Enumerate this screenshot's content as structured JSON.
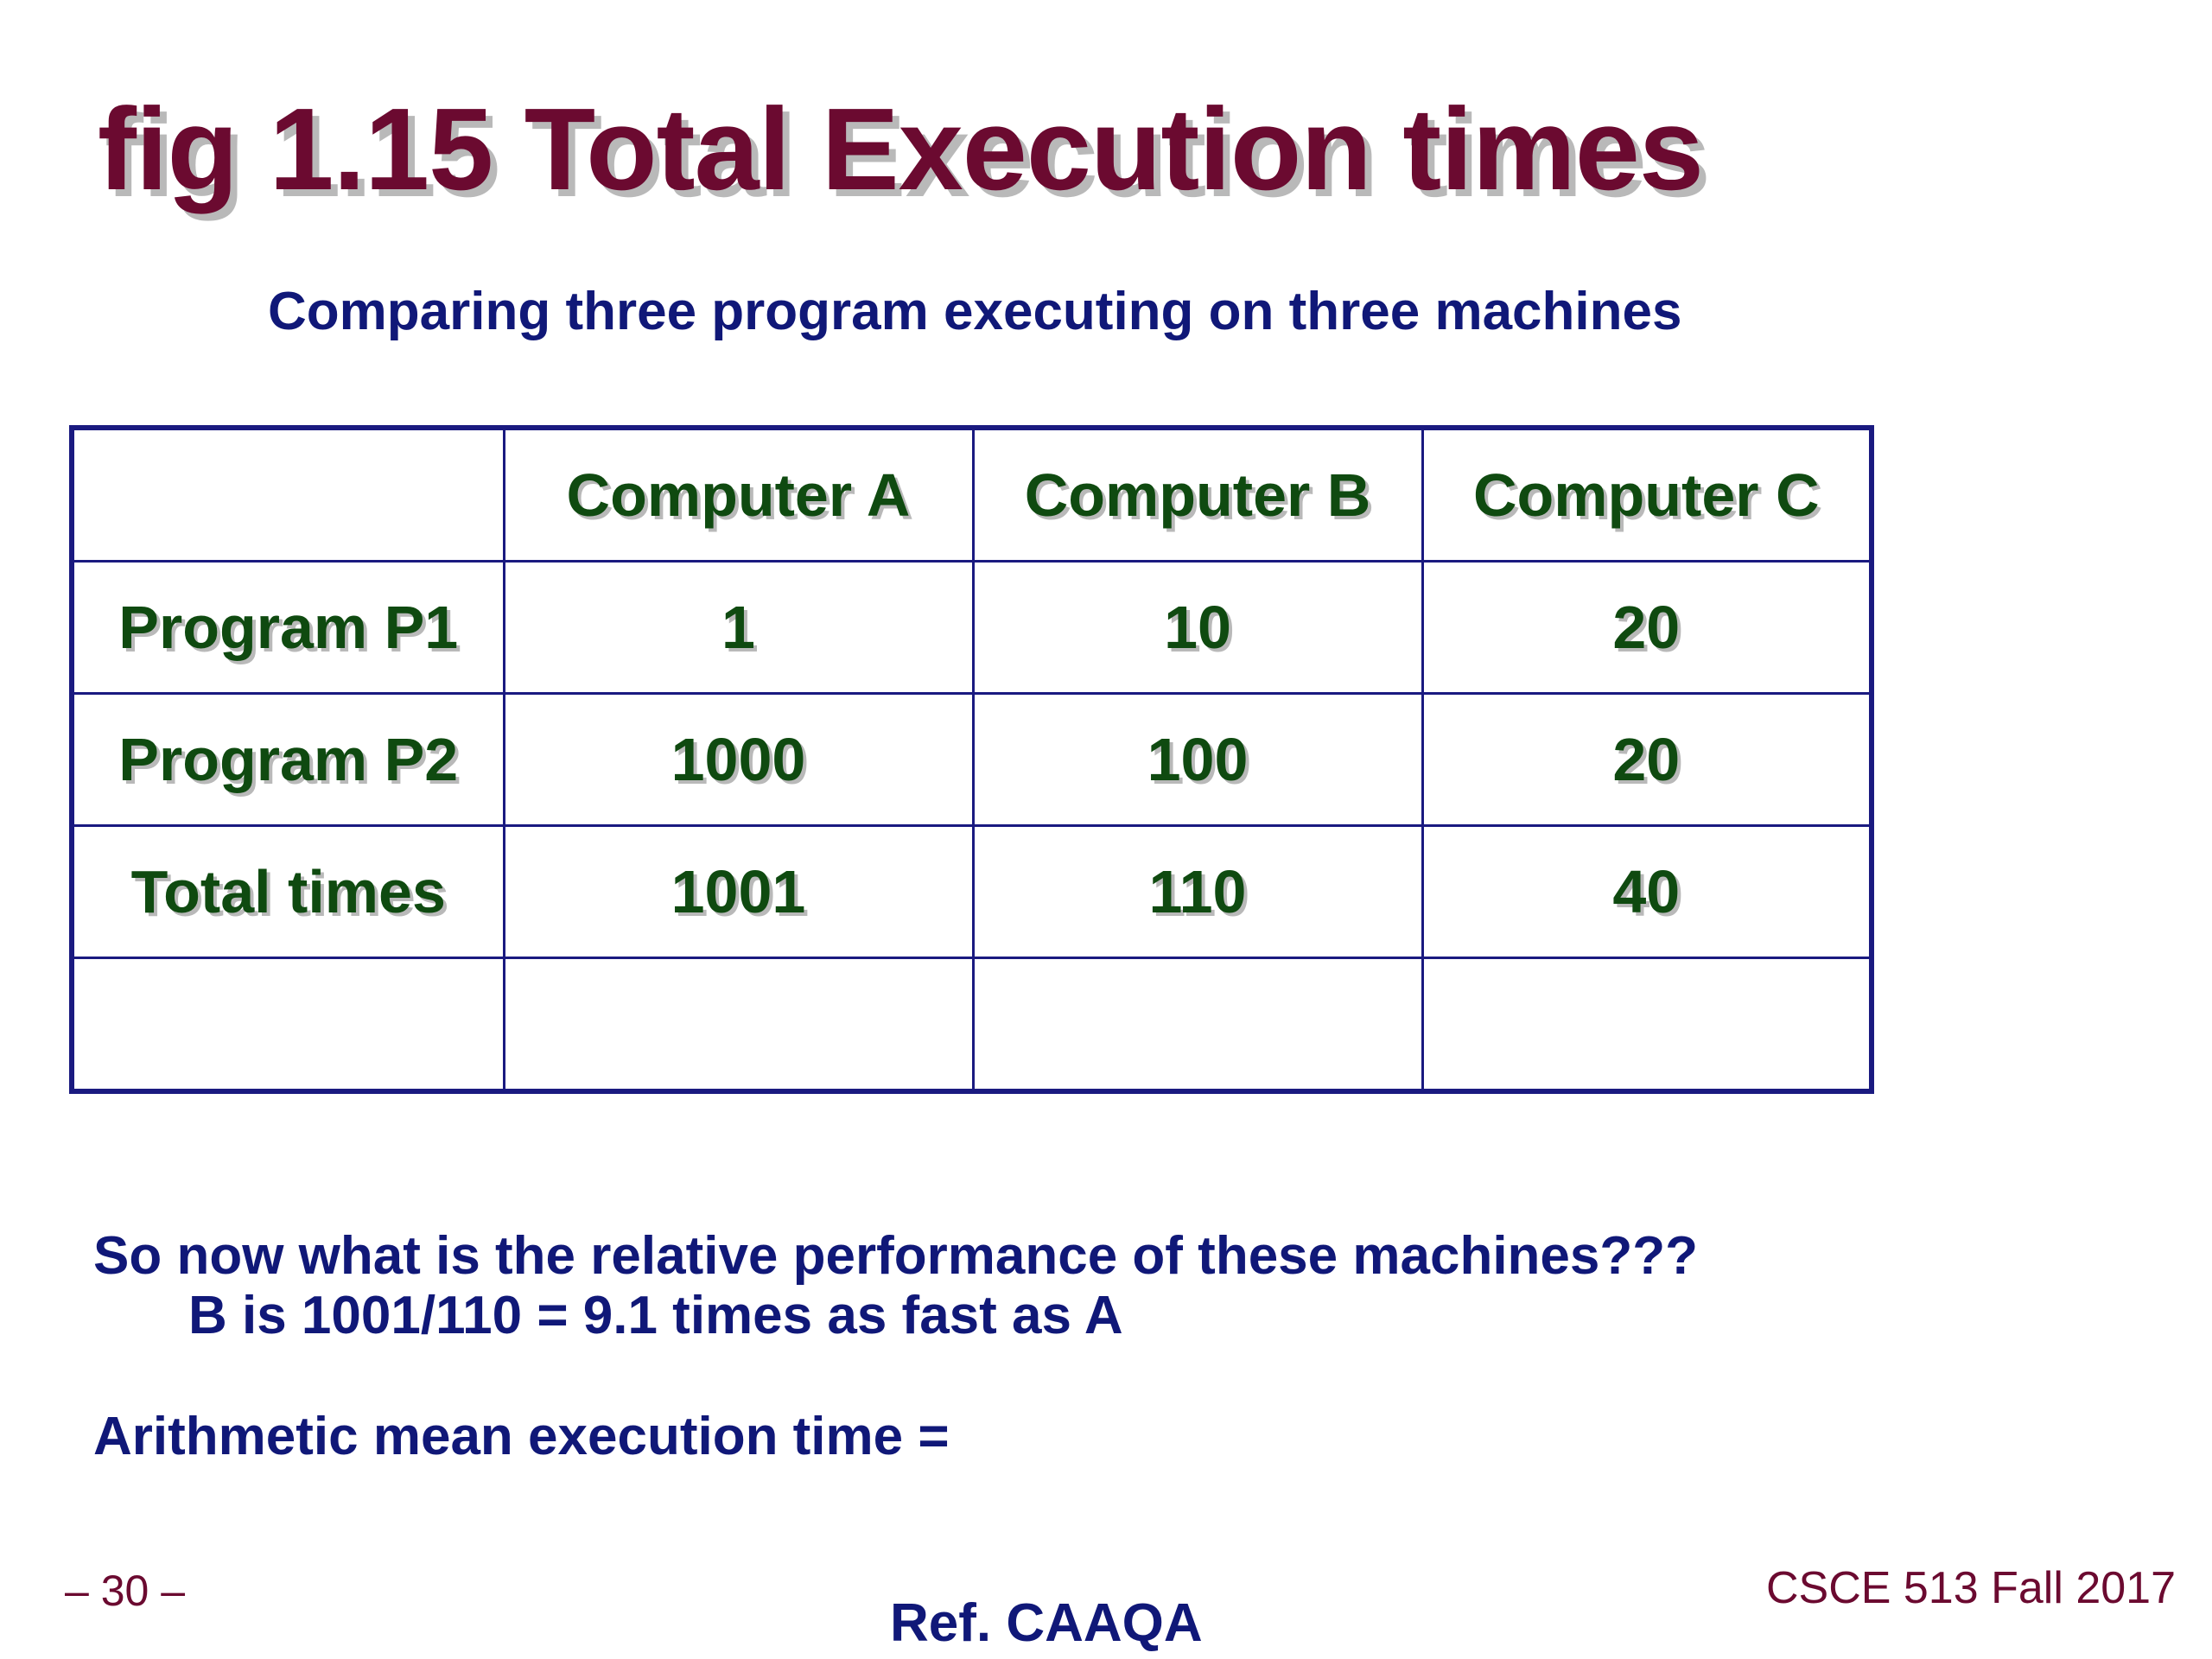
{
  "slide": {
    "title": "fig 1.15 Total Execution times",
    "subtitle": "Comparing three program executing on three machines"
  },
  "table": {
    "header": [
      "",
      "Computer A",
      "Computer B",
      "Computer C"
    ],
    "rows": [
      [
        "Program P1",
        "1",
        "10",
        "20"
      ],
      [
        "Program P2",
        "1000",
        "100",
        "20"
      ],
      [
        "Total times",
        "1001",
        "110",
        "40"
      ],
      [
        "",
        "",
        "",
        ""
      ]
    ]
  },
  "notes": {
    "question": "So now what is the relative performance of these machines???",
    "answer": "B is 1001/110 = 9.1 times as fast as A",
    "arithmetic_mean": "Arithmetic mean execution time ="
  },
  "footer": {
    "page_number": "– 30 –",
    "course": "CSCE 513 Fall 2017",
    "reference": "Ref. CAAQA"
  },
  "colors": {
    "title": "#6b0a30",
    "body_text": "#101878",
    "table_text": "#0f4a10",
    "table_border": "#1a1a80"
  }
}
